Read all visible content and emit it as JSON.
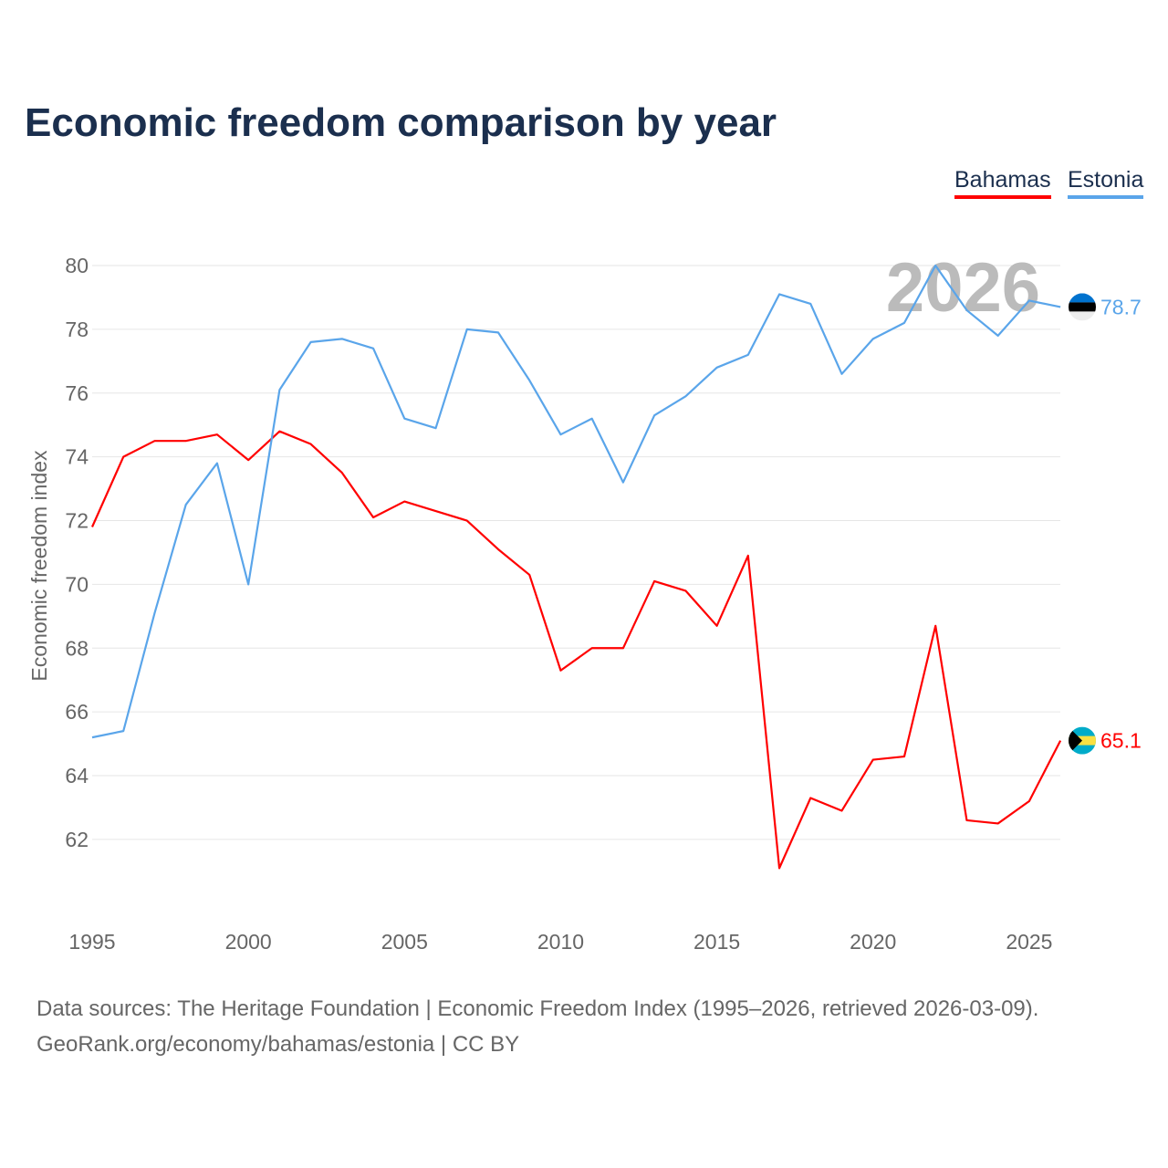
{
  "chart_data": {
    "type": "line",
    "title": "Economic freedom comparison by year",
    "xlabel": "",
    "ylabel": "Economic freedom index",
    "xlim": [
      1995,
      2026
    ],
    "ylim": [
      60,
      80.5
    ],
    "x_ticks": [
      1995,
      2000,
      2005,
      2010,
      2015,
      2020,
      2025
    ],
    "y_ticks": [
      62,
      64,
      66,
      68,
      70,
      72,
      74,
      76,
      78,
      80
    ],
    "grid": true,
    "legend_position": "top-right",
    "year_watermark": "2026",
    "x": [
      1995,
      1996,
      1997,
      1998,
      1999,
      2000,
      2001,
      2002,
      2003,
      2004,
      2005,
      2006,
      2007,
      2008,
      2009,
      2010,
      2011,
      2012,
      2013,
      2014,
      2015,
      2016,
      2017,
      2018,
      2019,
      2020,
      2021,
      2022,
      2023,
      2024,
      2025,
      2026
    ],
    "series": [
      {
        "name": "Bahamas",
        "color": "#ff0000",
        "end_label": "65.1",
        "values": [
          71.8,
          74.0,
          74.5,
          74.5,
          74.7,
          73.9,
          74.8,
          74.4,
          73.5,
          72.1,
          72.6,
          72.3,
          72.0,
          71.1,
          70.3,
          67.3,
          68.0,
          68.0,
          70.1,
          69.8,
          68.7,
          70.9,
          61.1,
          63.3,
          62.9,
          64.5,
          64.6,
          68.7,
          62.6,
          62.5,
          63.2,
          65.1
        ]
      },
      {
        "name": "Estonia",
        "color": "#5aa5ea",
        "end_label": "78.7",
        "values": [
          65.2,
          65.4,
          69.1,
          72.5,
          73.8,
          70.0,
          76.1,
          77.6,
          77.7,
          77.4,
          75.2,
          74.9,
          78.0,
          77.9,
          76.4,
          74.7,
          75.2,
          73.2,
          75.3,
          75.9,
          76.8,
          77.2,
          79.1,
          78.8,
          76.6,
          77.7,
          78.2,
          80.0,
          78.6,
          77.8,
          78.9,
          78.7
        ]
      }
    ]
  },
  "source": {
    "line1": "Data sources: The Heritage Foundation | Economic Freedom Index (1995–2026, retrieved 2026-03-09).",
    "line2": "GeoRank.org/economy/bahamas/estonia | CC BY"
  }
}
